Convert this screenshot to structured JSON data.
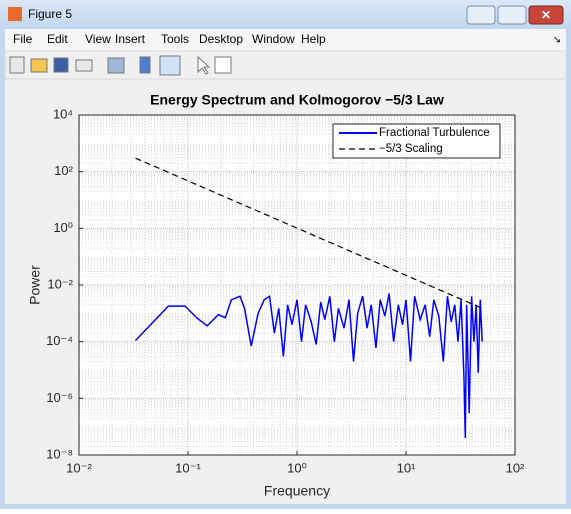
{
  "window": {
    "title": "Figure 5",
    "menu": [
      "File",
      "Edit",
      "View",
      "Insert",
      "Tools",
      "Desktop",
      "Window",
      "Help"
    ]
  },
  "chart_data": {
    "type": "line",
    "title": "Energy Spectrum and Kolmogorov −5/3 Law",
    "xlabel": "Frequency",
    "ylabel": "Power",
    "xscale": "log",
    "yscale": "log",
    "grid": true,
    "minor_grid": true,
    "legend": "upper right",
    "xlim": [
      0.01,
      100
    ],
    "ylim": [
      1e-08,
      10000
    ],
    "xticks": [
      {
        "value": 0.01,
        "label": "10⁻²"
      },
      {
        "value": 0.1,
        "label": "10⁻¹"
      },
      {
        "value": 1,
        "label": "10⁰"
      },
      {
        "value": 10,
        "label": "10¹"
      },
      {
        "value": 100,
        "label": "10²"
      }
    ],
    "yticks": [
      {
        "value": 1e-08,
        "label": "10⁻⁸"
      },
      {
        "value": 1e-06,
        "label": "10⁻⁶"
      },
      {
        "value": 0.0001,
        "label": "10⁻⁴"
      },
      {
        "value": 0.01,
        "label": "10⁻²"
      },
      {
        "value": 1,
        "label": "10⁰"
      },
      {
        "value": 100,
        "label": "10²"
      },
      {
        "value": 10000,
        "label": "10⁴"
      }
    ],
    "series": [
      {
        "name": "Fractional Turbulence",
        "color": "#0000ff",
        "dash": false,
        "x": [
          0.033,
          0.066,
          0.094,
          0.12,
          0.15,
          0.19,
          0.22,
          0.25,
          0.3,
          0.33,
          0.38,
          0.44,
          0.5,
          0.56,
          0.62,
          0.68,
          0.75,
          0.82,
          0.9,
          1.0,
          1.1,
          1.2,
          1.35,
          1.5,
          1.65,
          1.8,
          2.0,
          2.2,
          2.4,
          2.7,
          3.0,
          3.3,
          3.6,
          4.0,
          4.4,
          4.8,
          5.3,
          5.8,
          6.4,
          7.0,
          7.7,
          8.5,
          9.3,
          10,
          11,
          12,
          13.5,
          15,
          16.5,
          18,
          20,
          22,
          24,
          26,
          28,
          30,
          32,
          34,
          35,
          36,
          38,
          40,
          42,
          44,
          46,
          48,
          50
        ],
        "values": [
          0.00011,
          0.0018,
          0.0018,
          0.0007,
          0.00036,
          0.0009,
          0.0007,
          0.003,
          0.004,
          0.0015,
          7e-05,
          0.001,
          0.003,
          0.004,
          0.0002,
          0.0015,
          3e-05,
          0.002,
          0.0004,
          0.003,
          0.0001,
          0.002,
          0.0005,
          8e-05,
          0.0025,
          0.0006,
          0.004,
          0.0001,
          0.0015,
          0.0003,
          0.003,
          2e-05,
          0.001,
          0.004,
          0.0003,
          0.002,
          6e-05,
          0.003,
          0.0008,
          0.005,
          0.0001,
          0.002,
          0.0004,
          0.003,
          2e-05,
          0.004,
          0.0006,
          0.002,
          0.00015,
          0.003,
          0.0008,
          2e-05,
          0.004,
          0.0005,
          0.002,
          0.0001,
          0.003,
          6e-06,
          4e-08,
          0.002,
          3e-07,
          0.004,
          0.0001,
          0.002,
          8e-06,
          0.003,
          0.0001
        ]
      },
      {
        "name": "−5/3 Scaling",
        "color": "#000000",
        "dash": true,
        "x": [
          0.033,
          50
        ],
        "values": [
          300,
          0.0015
        ]
      }
    ]
  }
}
